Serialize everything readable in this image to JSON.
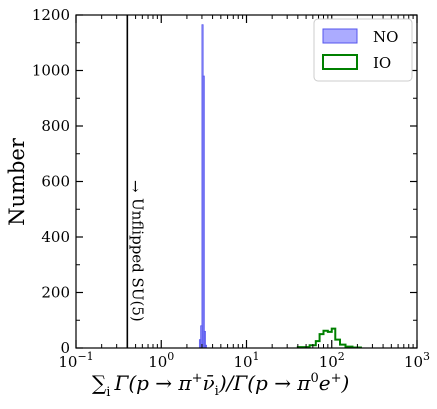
{
  "chart_data": {
    "type": "histogram",
    "title": "",
    "xlabel": "∑ᵢ Γ(p → π⁺ν̄ᵢ)/Γ(p → π⁰e⁺)",
    "xlabel_parts": {
      "sum": "∑",
      "sub_i": "i",
      "gamma1": "Γ(p → π",
      "sup_plus": "+",
      "nubar": "ν̄",
      "sub_i2": "i",
      "mid": ")/Γ(p → π",
      "sup_zero": "0",
      "e": "e",
      "sup_plus2": "+",
      "close": ")"
    },
    "ylabel": "Number",
    "xscale": "log",
    "xlim": [
      0.1,
      1000
    ],
    "ylim": [
      0,
      1200
    ],
    "xticks": [
      {
        "value": 0.1,
        "base": "10",
        "exp": "−1"
      },
      {
        "value": 1,
        "base": "10",
        "exp": "0"
      },
      {
        "value": 10,
        "base": "10",
        "exp": "1"
      },
      {
        "value": 100,
        "base": "10",
        "exp": "2"
      },
      {
        "value": 1000,
        "base": "10",
        "exp": "3"
      }
    ],
    "yticks": [
      "0",
      "200",
      "400",
      "600",
      "800",
      "1000",
      "1200"
    ],
    "legend_position": "top-right",
    "series": [
      {
        "name": "NO",
        "style": "filled",
        "color": "#6666ff",
        "edge_color": "#5555ee",
        "bins": [
          [
            2.8,
            2.9,
            30
          ],
          [
            2.9,
            3.0,
            80
          ],
          [
            3.0,
            3.1,
            1165
          ],
          [
            3.1,
            3.2,
            980
          ],
          [
            3.2,
            3.3,
            60
          ],
          [
            3.3,
            3.4,
            10
          ]
        ]
      },
      {
        "name": "IO",
        "style": "step",
        "color": "#008000",
        "bins": [
          [
            40,
            55,
            3
          ],
          [
            55,
            65,
            10
          ],
          [
            65,
            72,
            25
          ],
          [
            72,
            80,
            50
          ],
          [
            80,
            90,
            62
          ],
          [
            90,
            100,
            58
          ],
          [
            100,
            110,
            70
          ],
          [
            110,
            125,
            30
          ],
          [
            125,
            145,
            12
          ],
          [
            145,
            175,
            5
          ],
          [
            175,
            220,
            2
          ]
        ]
      }
    ],
    "annotations": [
      {
        "text": "Unflipped SU(5)",
        "x": 0.4,
        "arrow": "→"
      }
    ]
  }
}
